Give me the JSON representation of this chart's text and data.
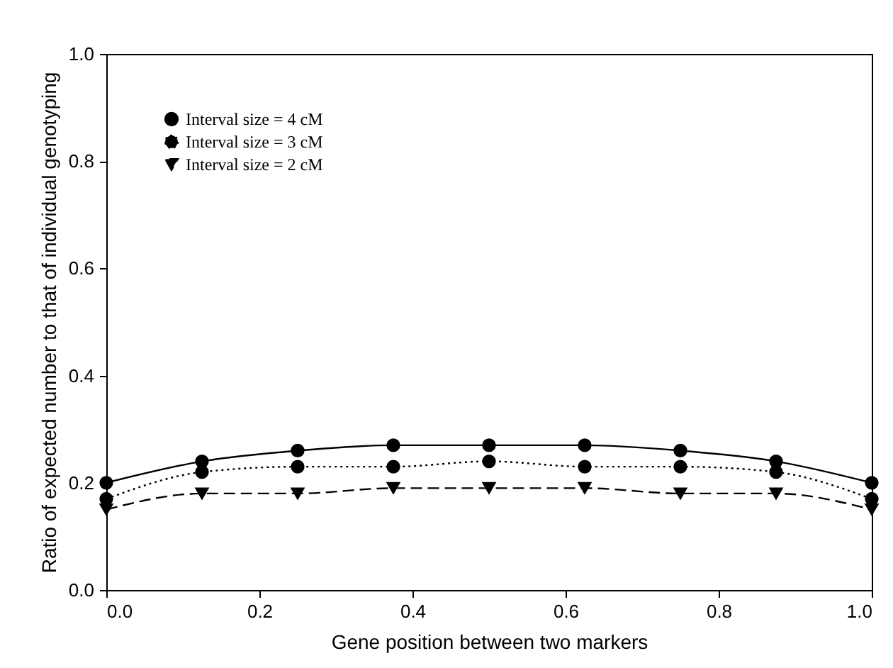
{
  "chart_data": {
    "type": "line",
    "xlabel": "Gene position between two markers",
    "ylabel": "Ratio of expected number to that of individual genotyping",
    "x": [
      0,
      0.125,
      0.25,
      0.375,
      0.5,
      0.625,
      0.75,
      0.875,
      1.0
    ],
    "xlim": [
      0,
      1
    ],
    "xticks": [
      {
        "value": 0,
        "label": "0.0"
      },
      0.2,
      0.4,
      0.6,
      0.8,
      {
        "value": 1,
        "label": "1.0"
      }
    ],
    "ylim": [
      0,
      1
    ],
    "yticks": [
      {
        "value": 0,
        "label": "0.0"
      },
      0.2,
      0.4,
      0.6,
      0.8,
      {
        "value": 1,
        "label": "1.0"
      }
    ],
    "legend": "top left",
    "grid": false,
    "series": [
      {
        "name": "Interval size = 4 cM",
        "color": "#000000",
        "marker": "circle",
        "line_style": "solid",
        "values": [
          0.2,
          0.24,
          0.26,
          0.27,
          0.27,
          0.27,
          0.26,
          0.24,
          0.2
        ]
      },
      {
        "name": "Interval size = 3 cM",
        "color": "#000000",
        "marker": "circle",
        "line_style": "dotted",
        "values": [
          0.17,
          0.22,
          0.23,
          0.23,
          0.24,
          0.23,
          0.23,
          0.22,
          0.17
        ]
      },
      {
        "name": "Interval size = 2 cM",
        "color": "#000000",
        "marker": "triangle-down",
        "line_style": "dashed",
        "values": [
          0.15,
          0.18,
          0.18,
          0.19,
          0.19,
          0.19,
          0.18,
          0.18,
          0.15
        ]
      }
    ]
  }
}
